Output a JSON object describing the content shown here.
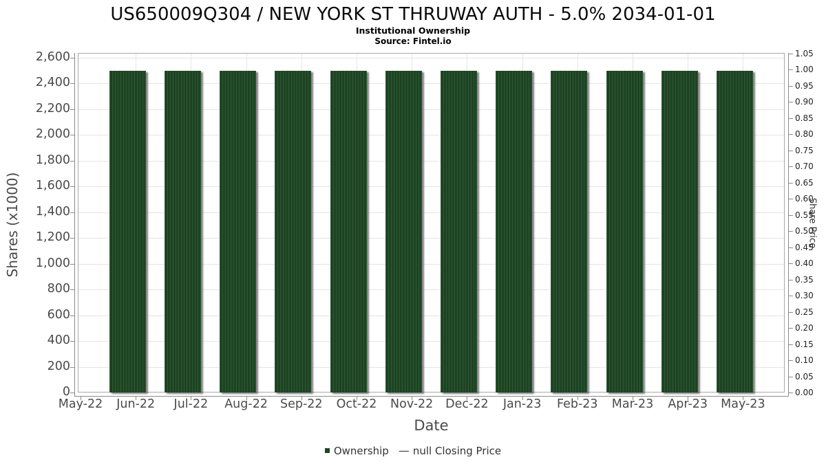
{
  "header": {
    "title": "US650009Q304 / NEW YORK ST THRUWAY AUTH - 5.0% 2034-01-01",
    "subtitle": "Institutional Ownership",
    "source": "Source: Fintel.io"
  },
  "chart_data": {
    "type": "bar",
    "title": "US650009Q304 / NEW YORK ST THRUWAY AUTH - 5.0% 2034-01-01",
    "subtitle": "Institutional Ownership",
    "source": "Source: Fintel.io",
    "categories": [
      "May-22",
      "Jun-22",
      "Jul-22",
      "Aug-22",
      "Sep-22",
      "Oct-22",
      "Nov-22",
      "Dec-22",
      "Jan-23",
      "Feb-23",
      "Mar-23",
      "Apr-23",
      "May-23"
    ],
    "series": [
      {
        "name": "Ownership",
        "type": "bar",
        "axis": "left",
        "color": "#1d4222",
        "values": [
          null,
          2500,
          2500,
          2500,
          2500,
          2500,
          2500,
          2500,
          2500,
          2500,
          2500,
          2500,
          2500
        ]
      },
      {
        "name": "null Closing Price",
        "type": "line",
        "axis": "right",
        "color": "#3d3d3d",
        "values": []
      }
    ],
    "xlabel": "Date",
    "left_axis": {
      "label": "Shares (x1000)",
      "min": 0,
      "max": 2600,
      "tick_step": 200,
      "ticks": [
        "0",
        "200",
        "400",
        "600",
        "800",
        "1,000",
        "1,200",
        "1,400",
        "1,600",
        "1,800",
        "2,000",
        "2,200",
        "2,400",
        "2,600"
      ]
    },
    "right_axis": {
      "label": "Share Price",
      "min": 0,
      "max": 1.05,
      "tick_step": 0.05,
      "ticks": [
        "0.00",
        "0.05",
        "0.10",
        "0.15",
        "0.20",
        "0.25",
        "0.30",
        "0.35",
        "0.40",
        "0.45",
        "0.50",
        "0.55",
        "0.60",
        "0.65",
        "0.70",
        "0.75",
        "0.80",
        "0.85",
        "0.90",
        "0.95",
        "1.00",
        "1.05"
      ]
    },
    "grid": true,
    "legend_position": "bottom"
  },
  "legend": {
    "ownership_label": "Ownership",
    "closing_price_label": "null Closing Price",
    "closing_price_marker": "—"
  },
  "colors": {
    "bar_fill": "#1d4222",
    "bar_stripe": "#2e5a35",
    "bar_shadow": "#9a9a9a",
    "gridline": "#e4e4e4",
    "axis_line": "#8a8a8a",
    "text": "#4a4a4a"
  }
}
